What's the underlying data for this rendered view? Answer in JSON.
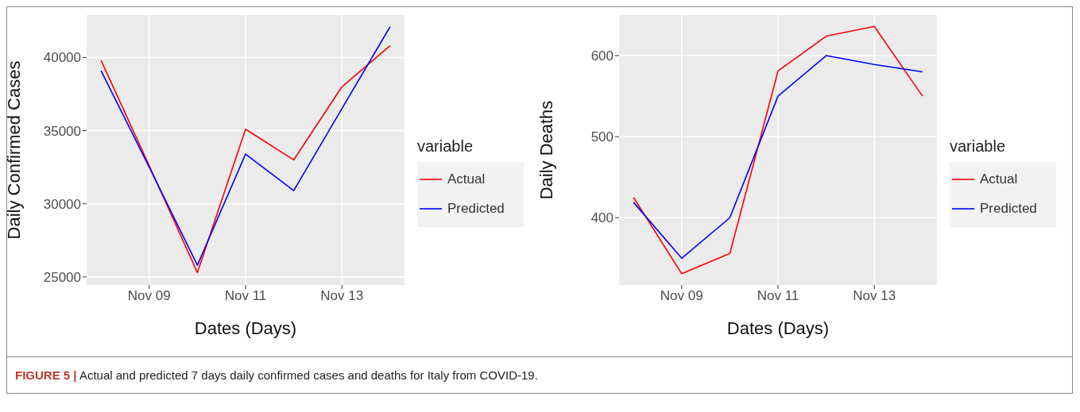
{
  "chart_data": [
    {
      "type": "line",
      "xlabel": "Dates (Days)",
      "ylabel": "Daily Confirmed Cases",
      "legend_title": "variable",
      "legend": "right",
      "grid": true,
      "marker": "none",
      "line_style": "solid",
      "x": [
        "--11-08",
        "--11-09",
        "--11-10",
        "--11-11",
        "--11-12",
        "--11-13",
        "--11-14"
      ],
      "xlim": [
        "--11-07T16:48",
        "--11-14T07:12"
      ],
      "xticks": [
        {
          "value": "--11-09",
          "label": "Nov 09"
        },
        {
          "value": "--11-11",
          "label": "Nov 11"
        },
        {
          "value": "--11-13",
          "label": "Nov 13"
        }
      ],
      "ylim": [
        24450,
        42900
      ],
      "yticks": [
        25000,
        30000,
        35000,
        40000
      ],
      "series": [
        {
          "name": "Actual",
          "color": "#ff0000",
          "values": [
            39800,
            32600,
            25300,
            35100,
            33000,
            38000,
            40800
          ]
        },
        {
          "name": "Predicted",
          "color": "#0000ff",
          "values": [
            39100,
            32500,
            25800,
            33400,
            30900,
            36500,
            42100
          ]
        }
      ],
      "annotations": [
        "FIGURE 5 | Actual and predicted 7 days daily confirmed cases and deaths for Italy from COVID-19."
      ]
    },
    {
      "type": "line",
      "xlabel": "Dates (Days)",
      "ylabel": "Daily Deaths",
      "legend_title": "variable",
      "legend": "right",
      "grid": true,
      "marker": "none",
      "line_style": "solid",
      "x": [
        "--11-08",
        "--11-09",
        "--11-10",
        "--11-11",
        "--11-12",
        "--11-13",
        "--11-14"
      ],
      "xlim": [
        "--11-07T16:48",
        "--11-14T07:12"
      ],
      "xticks": [
        {
          "value": "--11-09",
          "label": "Nov 09"
        },
        {
          "value": "--11-11",
          "label": "Nov 11"
        },
        {
          "value": "--11-13",
          "label": "Nov 13"
        }
      ],
      "ylim": [
        317,
        650
      ],
      "yticks": [
        400,
        500,
        600
      ],
      "series": [
        {
          "name": "Actual",
          "color": "#ff0000",
          "values": [
            425,
            331,
            356,
            581,
            624,
            636,
            550
          ]
        },
        {
          "name": "Predicted",
          "color": "#0000ff",
          "values": [
            419,
            350,
            400,
            550,
            600,
            589,
            580
          ]
        }
      ]
    }
  ]
}
